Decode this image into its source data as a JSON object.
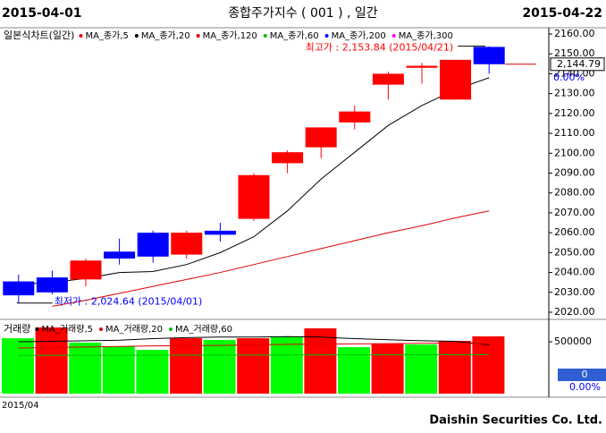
{
  "header": {
    "left": "2015-04-01",
    "title": "종합주가지수 ( 001 ) , 일간",
    "right": "2015-04-22"
  },
  "chart_data": [
    {
      "type": "candlestick",
      "legend_title": "일본식차트(일간)",
      "open": [
        2035.5,
        2037.5,
        2036.5,
        2050.5,
        2060,
        2049,
        2061,
        2067,
        2095,
        2103,
        2115.5,
        2134.5,
        2143,
        2127,
        2153.5
      ],
      "high": [
        2039,
        2041,
        2047,
        2057,
        2061,
        2061,
        2065,
        2090,
        2101.5,
        2113,
        2124,
        2141,
        2145.5,
        2147,
        2153.84
      ],
      "low": [
        2024.64,
        2029,
        2033,
        2044,
        2045,
        2047,
        2055.5,
        2066,
        2090,
        2097.5,
        2112,
        2127,
        2135,
        2127,
        2140
      ],
      "close": [
        2028.5,
        2030,
        2046,
        2047,
        2048,
        2060,
        2059,
        2089,
        2100.5,
        2113,
        2121,
        2140,
        2144,
        2147,
        2144.79
      ],
      "up_color": "#ff0000",
      "down_color": "#0000ff",
      "series": [
        {
          "name": "MA_종가,5",
          "color": "#ff0000"
        },
        {
          "name": "MA_종가,20",
          "color": "#000000",
          "values": [
            2034,
            2035,
            2037,
            2040,
            2040.5,
            2044,
            2050,
            2058,
            2071,
            2087,
            2100.5,
            2114,
            2124,
            2132,
            2138
          ]
        },
        {
          "name": "MA_종가,120",
          "color": "#e00000",
          "values": [
            null,
            2023,
            2026,
            2029.5,
            2033,
            2036.5,
            2040,
            2044,
            2048,
            2052,
            2056,
            2060,
            2063.5,
            2067.5,
            2071
          ]
        },
        {
          "name": "MA_종가,60",
          "color": "#00c000"
        },
        {
          "name": "MA_종가,200",
          "color": "#0000ff"
        },
        {
          "name": "MA_종가,300",
          "color": "#ff00ff"
        }
      ],
      "ylim": [
        2017.3,
        2162.7
      ],
      "yticks": [
        {
          "value": 2020,
          "label": "2020.00"
        },
        {
          "value": 2030,
          "label": "2030.00"
        },
        {
          "value": 2040,
          "label": "2040.00"
        },
        {
          "value": 2050,
          "label": "2050.00"
        },
        {
          "value": 2060,
          "label": "2060.00"
        },
        {
          "value": 2070,
          "label": "2070.00"
        },
        {
          "value": 2080,
          "label": "2080.00"
        },
        {
          "value": 2090,
          "label": "2090.00"
        },
        {
          "value": 2100,
          "label": "2100.00"
        },
        {
          "value": 2110,
          "label": "2110.00"
        },
        {
          "value": 2120,
          "label": "2120.00"
        },
        {
          "value": 2130,
          "label": "2130.00"
        },
        {
          "value": 2140,
          "label": "2140.00"
        },
        {
          "value": 2150,
          "label": "2150.00"
        },
        {
          "value": 2160,
          "label": "2160.00"
        }
      ],
      "annotations": {
        "high": "최고가 : 2,153.84 (2015/04/21)",
        "low": "최저가 : 2,024.64 (2015/04/01)"
      },
      "last_price": {
        "value": 2144.79,
        "label": "2,144.79"
      },
      "change_label": "0.00%"
    },
    {
      "type": "bar",
      "legend_title": "거래량",
      "values": [
        534000,
        638000,
        491000,
        457000,
        422000,
        534000,
        517000,
        534000,
        552000,
        629000,
        448000,
        483000,
        474000,
        509000,
        552000
      ],
      "colors": [
        "#00ff00",
        "#ff0000",
        "#00ff00",
        "#00ff00",
        "#00ff00",
        "#ff0000",
        "#00ff00",
        "#ff0000",
        "#00ff00",
        "#ff0000",
        "#00ff00",
        "#ff0000",
        "#00ff00",
        "#ff0000",
        "#ff0000"
      ],
      "series": [
        {
          "name": "MA_거래량,5",
          "color": "#000000",
          "values": [
            500000,
            505000,
            510000,
            515000,
            530000,
            540000,
            545000,
            545000,
            550000,
            545000,
            530000,
            520000,
            510000,
            505000,
            470000
          ]
        },
        {
          "name": "MA_거래량,20",
          "color": "#e00000",
          "values": [
            440000,
            445000,
            450000,
            455000,
            460000,
            462000,
            465000,
            470000,
            475000,
            478000,
            480000,
            482000,
            485000,
            488000,
            480000
          ]
        },
        {
          "name": "MA_거래량,60",
          "color": "#00c000",
          "values": [
            368000,
            369000,
            370000,
            370000,
            371000,
            371000,
            372000,
            372000,
            373000,
            373000,
            374000,
            374000,
            375000,
            375000,
            376000
          ]
        }
      ],
      "ylim": [
        0,
        690000
      ],
      "yticks": [
        500000
      ],
      "x_label": "2015/04",
      "value_box": "0",
      "change_box": "0.00%"
    }
  ],
  "footer": "Daishin Securities Co. Ltd."
}
